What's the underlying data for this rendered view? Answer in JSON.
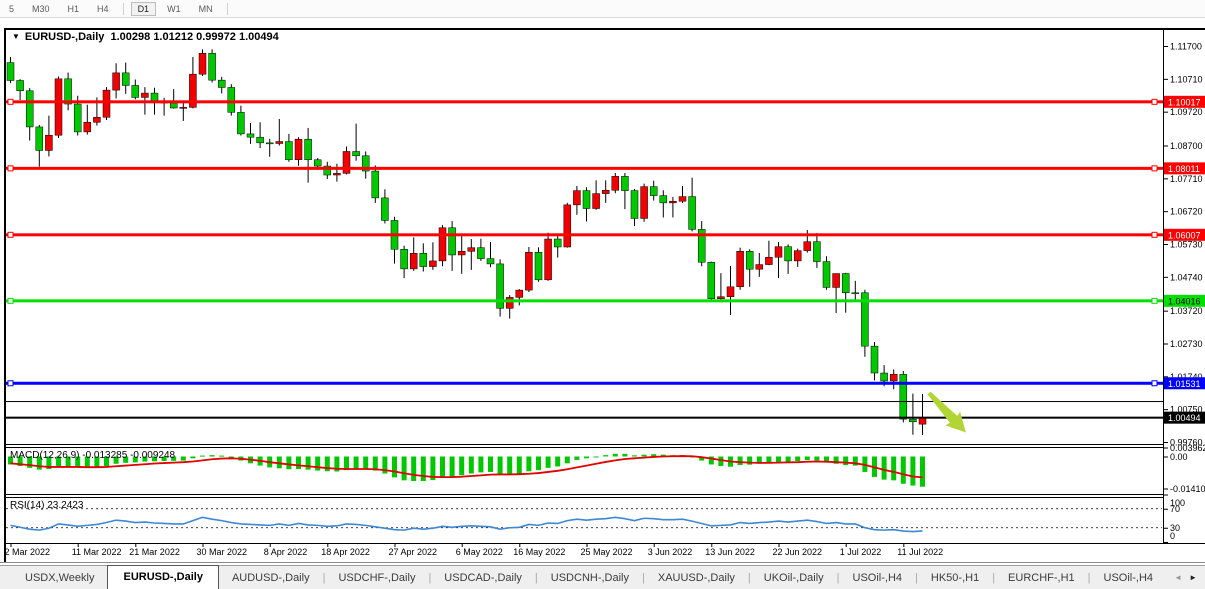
{
  "toolbar": {
    "timeframes": [
      {
        "label": "5",
        "active": false
      },
      {
        "label": "M30",
        "active": false
      },
      {
        "label": "H1",
        "active": false
      },
      {
        "label": "H4",
        "active": false
      },
      {
        "label": "D1",
        "active": true
      },
      {
        "label": "W1",
        "active": false
      },
      {
        "label": "MN",
        "active": false
      }
    ]
  },
  "chart": {
    "title": {
      "symbol": "EURUSD-,Daily",
      "open": "1.00298",
      "high": "1.01212",
      "low": "0.99972",
      "close": "1.00494",
      "text": "EURUSD-,Daily  1.00298 1.01212 0.99972 1.00494"
    },
    "colors": {
      "bull": "#f00000",
      "bear": "#00c800",
      "wick": "#000000",
      "background": "#ffffff"
    },
    "price_axis": {
      "ticks": [
        "1.11700",
        "1.10710",
        "1.09720",
        "1.08700",
        "1.07710",
        "1.06720",
        "1.05730",
        "1.04740",
        "1.03720",
        "1.02730",
        "1.01740",
        "1.00750",
        "0.99760"
      ]
    },
    "hlines": [
      {
        "price": 1.10017,
        "label": "1.10017",
        "color": "#ff0000",
        "text_color": "#ffffff",
        "thickness": 3,
        "handles": true
      },
      {
        "price": 1.08011,
        "label": "1.08011",
        "color": "#ff0000",
        "text_color": "#ffffff",
        "thickness": 3,
        "handles": true
      },
      {
        "price": 1.06007,
        "label": "1.06007",
        "color": "#ff0000",
        "text_color": "#ffffff",
        "thickness": 3,
        "handles": true
      },
      {
        "price": 1.04016,
        "label": "1.04016",
        "color": "#00e000",
        "text_color": "#000000",
        "thickness": 3,
        "handles": true
      },
      {
        "price": 1.01531,
        "label": "1.01531",
        "color": "#0000ff",
        "text_color": "#ffffff",
        "thickness": 3,
        "handles": true
      },
      {
        "price": 1.0098,
        "label": null,
        "color": "#000000",
        "text_color": "#ffffff",
        "thickness": 1,
        "handles": false
      },
      {
        "price": 1.00494,
        "label": "1.00494",
        "color": "#000000",
        "text_color": "#ffffff",
        "thickness": 2,
        "handles": false
      }
    ],
    "arrow": {
      "name": "down-right-arrow",
      "color": "#b2d435"
    },
    "dates": [
      {
        "label": "2 Mar 2022",
        "i": 0
      },
      {
        "label": "11 Mar 2022",
        "i": 7
      },
      {
        "label": "21 Mar 2022",
        "i": 13
      },
      {
        "label": "30 Mar 2022",
        "i": 20
      },
      {
        "label": "8 Apr 2022",
        "i": 27
      },
      {
        "label": "18 Apr 2022",
        "i": 33
      },
      {
        "label": "27 Apr 2022",
        "i": 40
      },
      {
        "label": "6 May 2022",
        "i": 47
      },
      {
        "label": "16 May 2022",
        "i": 53
      },
      {
        "label": "25 May 2022",
        "i": 60
      },
      {
        "label": "3 Jun 2022",
        "i": 67
      },
      {
        "label": "13 Jun 2022",
        "i": 73
      },
      {
        "label": "22 Jun 2022",
        "i": 80
      },
      {
        "label": "1 Jul 2022",
        "i": 87
      },
      {
        "label": "11 Jul 2022",
        "i": 93
      }
    ],
    "candles": [
      [
        1.112,
        1.1137,
        1.1058,
        1.1066
      ],
      [
        1.1066,
        1.107,
        1.1007,
        1.1035
      ],
      [
        1.1035,
        1.1043,
        1.0885,
        1.0926
      ],
      [
        1.0926,
        1.0932,
        1.0806,
        1.0855
      ],
      [
        1.0855,
        1.096,
        1.0837,
        1.0901
      ],
      [
        1.0901,
        1.1078,
        1.0893,
        1.1071
      ],
      [
        1.1071,
        1.109,
        1.0976,
        1.0995
      ],
      [
        1.0995,
        1.102,
        1.09,
        1.0911
      ],
      [
        1.0911,
        1.0993,
        1.0903,
        1.094
      ],
      [
        1.094,
        1.1015,
        1.093,
        1.0955
      ],
      [
        1.0955,
        1.1046,
        1.0947,
        1.1037
      ],
      [
        1.1037,
        1.1118,
        1.1012,
        1.1089
      ],
      [
        1.1089,
        1.112,
        1.1026,
        1.1051
      ],
      [
        1.1051,
        1.1069,
        1.1009,
        1.1015
      ],
      [
        1.1015,
        1.1046,
        1.0963,
        1.1028
      ],
      [
        1.1028,
        1.1044,
        1.0963,
        1.1003
      ],
      [
        1.1003,
        1.1014,
        1.096,
        1.0998
      ],
      [
        1.0998,
        1.104,
        1.0981,
        1.0983
      ],
      [
        1.0983,
        1.0999,
        1.0944,
        1.0985
      ],
      [
        1.0985,
        1.1137,
        1.0982,
        1.1085
      ],
      [
        1.1085,
        1.116,
        1.108,
        1.1148
      ],
      [
        1.1148,
        1.116,
        1.106,
        1.1067
      ],
      [
        1.1067,
        1.1077,
        1.1027,
        1.1045
      ],
      [
        1.1045,
        1.1055,
        1.096,
        1.097
      ],
      [
        1.097,
        1.099,
        1.09,
        1.0905
      ],
      [
        1.0905,
        1.0938,
        1.0875,
        1.0895
      ],
      [
        1.0895,
        1.094,
        1.0862,
        1.0878
      ],
      [
        1.0878,
        1.089,
        1.0836,
        1.0876
      ],
      [
        1.0876,
        1.095,
        1.087,
        1.0882
      ],
      [
        1.0882,
        1.0905,
        1.0821,
        1.0827
      ],
      [
        1.0827,
        1.0895,
        1.0809,
        1.0889
      ],
      [
        1.0889,
        1.0923,
        1.0758,
        1.0827
      ],
      [
        1.0827,
        1.0832,
        1.0796,
        1.0808
      ],
      [
        1.0808,
        1.0821,
        1.0769,
        1.0781
      ],
      [
        1.0781,
        1.0815,
        1.0761,
        1.0786
      ],
      [
        1.0786,
        1.0867,
        1.0783,
        1.0852
      ],
      [
        1.0852,
        1.0936,
        1.0824,
        1.0839
      ],
      [
        1.0839,
        1.0852,
        1.077,
        1.0793
      ],
      [
        1.0793,
        1.081,
        1.0697,
        1.0712
      ],
      [
        1.0712,
        1.0738,
        1.0635,
        1.0644
      ],
      [
        1.0644,
        1.0655,
        1.0514,
        1.0557
      ],
      [
        1.0557,
        1.0568,
        1.047,
        1.0498
      ],
      [
        1.0498,
        1.0593,
        1.0492,
        1.0545
      ],
      [
        1.0545,
        1.0575,
        1.049,
        1.0505
      ],
      [
        1.0505,
        1.0578,
        1.0495,
        1.0522
      ],
      [
        1.0522,
        1.063,
        1.0506,
        1.0622
      ],
      [
        1.0622,
        1.0642,
        1.0492,
        1.054
      ],
      [
        1.054,
        1.0599,
        1.0483,
        1.0551
      ],
      [
        1.0551,
        1.0588,
        1.0495,
        1.0562
      ],
      [
        1.0562,
        1.0589,
        1.0522,
        1.0529
      ],
      [
        1.0529,
        1.0579,
        1.0503,
        1.0513
      ],
      [
        1.0513,
        1.0527,
        1.0354,
        1.0379
      ],
      [
        1.0379,
        1.0419,
        1.0348,
        1.0412
      ],
      [
        1.0412,
        1.0437,
        1.0388,
        1.0434
      ],
      [
        1.0434,
        1.0564,
        1.0428,
        1.0548
      ],
      [
        1.0548,
        1.0563,
        1.0459,
        1.0465
      ],
      [
        1.0465,
        1.0607,
        1.0462,
        1.0588
      ],
      [
        1.0588,
        1.0605,
        1.0532,
        1.0564
      ],
      [
        1.0564,
        1.0697,
        1.0562,
        1.0691
      ],
      [
        1.0691,
        1.0748,
        1.0661,
        1.0734
      ],
      [
        1.0734,
        1.0744,
        1.0641,
        1.068
      ],
      [
        1.068,
        1.0765,
        1.0676,
        1.0725
      ],
      [
        1.0725,
        1.0765,
        1.0697,
        1.0735
      ],
      [
        1.0735,
        1.0787,
        1.0726,
        1.0777
      ],
      [
        1.0777,
        1.0787,
        1.0678,
        1.0734
      ],
      [
        1.0734,
        1.0739,
        1.0627,
        1.065
      ],
      [
        1.065,
        1.0755,
        1.064,
        1.0746
      ],
      [
        1.0746,
        1.0764,
        1.0704,
        1.0719
      ],
      [
        1.0719,
        1.0735,
        1.0653,
        1.0697
      ],
      [
        1.0697,
        1.0715,
        1.0653,
        1.0702
      ],
      [
        1.0702,
        1.0748,
        1.0697,
        1.0716
      ],
      [
        1.0716,
        1.0773,
        1.0611,
        1.0617
      ],
      [
        1.0617,
        1.0642,
        1.0506,
        1.0518
      ],
      [
        1.0518,
        1.052,
        1.0399,
        1.0408
      ],
      [
        1.0408,
        1.0485,
        1.0397,
        1.0414
      ],
      [
        1.0414,
        1.0507,
        1.0359,
        1.0444
      ],
      [
        1.0444,
        1.0562,
        1.0435,
        1.0551
      ],
      [
        1.0551,
        1.0557,
        1.0444,
        1.0497
      ],
      [
        1.0497,
        1.0546,
        1.0474,
        1.0511
      ],
      [
        1.0511,
        1.0583,
        1.0509,
        1.0533
      ],
      [
        1.0533,
        1.0579,
        1.047,
        1.0565
      ],
      [
        1.0565,
        1.0572,
        1.0483,
        1.0522
      ],
      [
        1.0522,
        1.0559,
        1.0504,
        1.0553
      ],
      [
        1.0553,
        1.0615,
        1.0547,
        1.058
      ],
      [
        1.058,
        1.0606,
        1.0501,
        1.052
      ],
      [
        1.052,
        1.0536,
        1.0435,
        1.0442
      ],
      [
        1.0442,
        1.0458,
        1.0365,
        1.0484
      ],
      [
        1.0484,
        1.0486,
        1.0366,
        1.0426
      ],
      [
        1.0426,
        1.0462,
        1.04,
        1.0423
      ],
      [
        1.0426,
        1.0435,
        1.0233,
        1.0265
      ],
      [
        1.0265,
        1.0277,
        1.0162,
        1.0184
      ],
      [
        1.0184,
        1.0208,
        1.0144,
        1.016
      ],
      [
        1.016,
        1.0195,
        1.0135,
        1.018
      ],
      [
        1.018,
        1.019,
        1.0035,
        1.0045
      ],
      [
        1.0045,
        1.0122,
        0.9998,
        1.0037
      ],
      [
        1.00298,
        1.01212,
        0.99972,
        1.00494
      ]
    ]
  },
  "macd": {
    "label": "MACD(12,26,9) -0.013285 -0.009248",
    "main_value": "-0.013285",
    "signal_value": "-0.009248",
    "colors": {
      "histogram": "#00c800",
      "signal": "#e00000"
    },
    "axis_labels": [
      {
        "label": "0.003962",
        "v": 0.003962
      },
      {
        "label": "0.00",
        "v": 0
      },
      {
        "label": "-0.01410",
        "v": -0.0141
      }
    ],
    "histogram": [
      -0.0035,
      -0.0042,
      -0.005,
      -0.0058,
      -0.0055,
      -0.0045,
      -0.0045,
      -0.0048,
      -0.005,
      -0.0048,
      -0.0042,
      -0.0032,
      -0.0028,
      -0.0026,
      -0.0022,
      -0.0021,
      -0.002,
      -0.0019,
      -0.0018,
      -0.0008,
      0.0004,
      0.0006,
      0.0004,
      -0.0005,
      -0.0018,
      -0.003,
      -0.004,
      -0.0048,
      -0.0052,
      -0.0056,
      -0.0055,
      -0.0058,
      -0.0062,
      -0.0065,
      -0.0066,
      -0.006,
      -0.0055,
      -0.0055,
      -0.0062,
      -0.0075,
      -0.0092,
      -0.0105,
      -0.0108,
      -0.0108,
      -0.0104,
      -0.0095,
      -0.009,
      -0.0082,
      -0.0075,
      -0.007,
      -0.0068,
      -0.0075,
      -0.0078,
      -0.0076,
      -0.0065,
      -0.006,
      -0.005,
      -0.0044,
      -0.003,
      -0.0015,
      -0.0008,
      0.0,
      0.0006,
      0.0012,
      0.0012,
      0.0005,
      0.0008,
      0.001,
      0.0008,
      0.0006,
      0.0006,
      -0.0002,
      -0.0018,
      -0.0035,
      -0.0042,
      -0.0045,
      -0.0038,
      -0.0036,
      -0.0032,
      -0.0028,
      -0.0024,
      -0.0022,
      -0.002,
      -0.0016,
      -0.0018,
      -0.0026,
      -0.0032,
      -0.0038,
      -0.004,
      -0.0068,
      -0.009,
      -0.0102,
      -0.0105,
      -0.012,
      -0.0128,
      -0.0133
    ],
    "signal": [
      -0.003,
      -0.0034,
      -0.0038,
      -0.0043,
      -0.0046,
      -0.0046,
      -0.0046,
      -0.0046,
      -0.0047,
      -0.0047,
      -0.0046,
      -0.0043,
      -0.004,
      -0.0037,
      -0.0034,
      -0.0031,
      -0.0029,
      -0.0027,
      -0.0025,
      -0.0022,
      -0.0017,
      -0.0012,
      -0.0009,
      -0.0008,
      -0.001,
      -0.0014,
      -0.0019,
      -0.0025,
      -0.003,
      -0.0035,
      -0.0039,
      -0.0043,
      -0.0047,
      -0.0051,
      -0.0054,
      -0.0055,
      -0.0055,
      -0.0055,
      -0.0056,
      -0.006,
      -0.0066,
      -0.0074,
      -0.0081,
      -0.0086,
      -0.009,
      -0.0091,
      -0.0091,
      -0.0089,
      -0.0086,
      -0.0083,
      -0.008,
      -0.0079,
      -0.0079,
      -0.0078,
      -0.0076,
      -0.0073,
      -0.0068,
      -0.0063,
      -0.0056,
      -0.0048,
      -0.004,
      -0.0032,
      -0.0024,
      -0.0017,
      -0.0011,
      -0.0008,
      -0.0005,
      -0.0002,
      0.0,
      0.0001,
      0.0002,
      0.0001,
      -0.0003,
      -0.0009,
      -0.0016,
      -0.0022,
      -0.0025,
      -0.0027,
      -0.0028,
      -0.0028,
      -0.0027,
      -0.0026,
      -0.0025,
      -0.0023,
      -0.0022,
      -0.0023,
      -0.0025,
      -0.0027,
      -0.003,
      -0.0037,
      -0.0048,
      -0.0059,
      -0.0068,
      -0.0078,
      -0.0088,
      -0.0092
    ]
  },
  "rsi": {
    "label": "RSI(14) 23.2423",
    "current_value": "23.2423",
    "color": "#3d87d6",
    "levels": [
      {
        "label": "100",
        "v": 100,
        "dashed": false
      },
      {
        "label": "70",
        "v": 70,
        "dashed": true
      },
      {
        "label": "30",
        "v": 30,
        "dashed": true
      },
      {
        "label": "0",
        "v": 0,
        "dashed": false
      }
    ],
    "values": [
      35,
      31,
      27,
      25,
      29,
      38,
      36,
      33,
      35,
      37,
      41,
      46,
      44,
      41,
      42,
      40,
      39,
      38,
      38,
      45,
      52,
      48,
      45,
      41,
      38,
      37,
      36,
      35,
      38,
      35,
      39,
      36,
      35,
      33,
      34,
      38,
      37,
      35,
      32,
      29,
      26,
      25,
      29,
      27,
      29,
      33,
      31,
      33,
      34,
      33,
      32,
      27,
      30,
      31,
      37,
      35,
      40,
      39,
      45,
      48,
      46,
      48,
      49,
      52,
      49,
      45,
      50,
      49,
      47,
      47,
      48,
      44,
      39,
      34,
      35,
      36,
      41,
      39,
      41,
      42,
      44,
      42,
      44,
      46,
      43,
      39,
      41,
      38,
      38,
      30,
      26,
      25,
      26,
      23,
      22,
      23.24
    ]
  },
  "tabs": {
    "items": [
      {
        "label": "USDX,Weekly",
        "active": false
      },
      {
        "label": "EURUSD-,Daily",
        "active": true
      },
      {
        "label": "AUDUSD-,Daily",
        "active": false
      },
      {
        "label": "USDCHF-,Daily",
        "active": false
      },
      {
        "label": "USDCAD-,Daily",
        "active": false
      },
      {
        "label": "USDCNH-,Daily",
        "active": false
      },
      {
        "label": "XAUUSD-,Daily",
        "active": false
      },
      {
        "label": "UKOil-,Daily",
        "active": false
      },
      {
        "label": "USOil-,H4",
        "active": false
      },
      {
        "label": "HK50-,H1",
        "active": false
      },
      {
        "label": "EURCHF-,H1",
        "active": false
      },
      {
        "label": "USOil-,H4",
        "active": false
      }
    ],
    "scroll_left": "◄",
    "scroll_right": "►"
  }
}
